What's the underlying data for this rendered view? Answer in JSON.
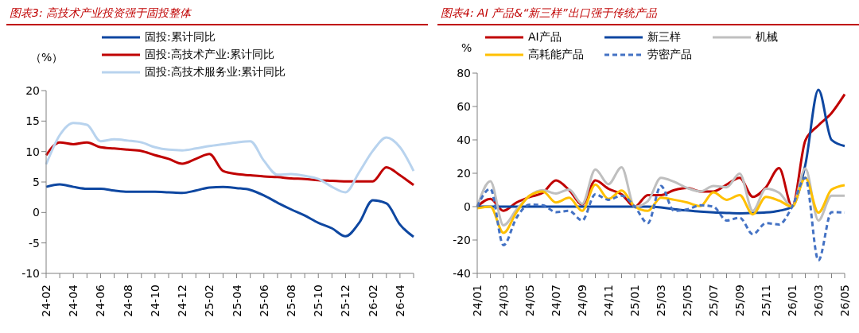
{
  "chart_data": [
    {
      "type": "line",
      "title": "图表3: 高技术产业投资强于固投整体",
      "ylabel": "（%）",
      "categories": [
        "24-02",
        null,
        "24-04",
        null,
        "24-06",
        null,
        "24-08",
        null,
        "24-10",
        null,
        "24-12",
        null,
        "25-02",
        null,
        "25-04",
        null,
        "25-06",
        null,
        "25-08",
        null,
        "25-10",
        null,
        "25-12",
        null,
        "26-02",
        null,
        "26-04",
        null
      ],
      "series": [
        {
          "name": "固投:累计同比",
          "color": "#0e47a1",
          "values": [
            4.2,
            4.6,
            4.2,
            3.9,
            3.9,
            3.6,
            3.4,
            3.4,
            3.4,
            3.3,
            3.2,
            3.6,
            4.1,
            4.2,
            4.0,
            3.7,
            2.8,
            1.6,
            0.5,
            -0.5,
            -1.7,
            -2.6,
            -3.9,
            -1.7,
            2.0,
            1.5,
            -2.0,
            -4.0
          ]
        },
        {
          "name": "固投:高技术产业:累计同比",
          "color": "#c00000",
          "values": [
            9.4,
            11.5,
            11.2,
            11.5,
            10.7,
            10.5,
            10.3,
            10.1,
            9.4,
            8.8,
            8.0,
            8.8,
            9.6,
            6.8,
            6.3,
            6.1,
            5.9,
            5.8,
            5.6,
            5.5,
            5.3,
            5.2,
            5.1,
            5.1,
            5.1,
            7.4,
            6.1,
            4.5
          ]
        },
        {
          "name": "固投:高技术服务业:累计同比",
          "color": "#b8d3ee",
          "values": [
            7.9,
            12.7,
            14.7,
            14.4,
            11.7,
            12.0,
            11.8,
            11.5,
            10.7,
            10.3,
            10.2,
            10.5,
            10.9,
            11.2,
            11.5,
            11.7,
            8.5,
            6.2,
            6.3,
            6.0,
            5.5,
            4.2,
            3.3,
            6.6,
            10.1,
            12.3,
            10.7,
            6.8
          ]
        }
      ],
      "ylim": [
        -10,
        20
      ],
      "yticks": [
        -10,
        -5,
        0,
        5,
        10,
        15,
        20
      ],
      "grid": false,
      "legend": "top",
      "marker": "none"
    },
    {
      "type": "line",
      "title": "图表4: AI 产品&“新三样”出口强于传统产品",
      "ylabel": "%",
      "categories": [
        "24/01",
        null,
        "24/03",
        null,
        "24/05",
        null,
        "24/07",
        null,
        "24/09",
        null,
        "24/11",
        null,
        "25/01",
        null,
        "25/03",
        null,
        "25/05",
        null,
        "25/07",
        null,
        "25/09",
        null,
        "25/11",
        null,
        "26/01",
        null,
        "26/03",
        null,
        "26/05"
      ],
      "series": [
        {
          "name": "AI产品",
          "color": "#c00000",
          "values": [
            0,
            4.6,
            -2.5,
            2.5,
            5.8,
            8.3,
            15.7,
            9.9,
            1.3,
            15.7,
            10.7,
            7.4,
            0,
            6.9,
            6.9,
            9.9,
            11.2,
            9.1,
            9.1,
            13.2,
            17.3,
            5.8,
            11.6,
            23.1,
            0,
            39.6,
            48.7,
            56.1,
            67.3
          ]
        },
        {
          "name": "新三样",
          "color": "#0e47a1",
          "values": [
            0,
            0,
            0,
            0,
            0,
            0,
            0,
            0,
            0,
            0,
            0,
            0,
            0,
            0,
            -0.5,
            -1.5,
            -2.3,
            -3.0,
            -3.5,
            -3.8,
            -4.0,
            -3.8,
            -3.5,
            -2.5,
            0,
            25,
            70,
            40,
            36.3
          ]
        },
        {
          "name": "机械",
          "color": "#bfbfbf",
          "values": [
            0,
            15.2,
            -11.2,
            -1.7,
            6.6,
            9.9,
            7.9,
            10.2,
            1.7,
            22.3,
            13.5,
            23.6,
            0,
            3.3,
            17.3,
            14.9,
            11.2,
            9.1,
            12.4,
            11.6,
            19.8,
            -2.5,
            10.7,
            8.3,
            0,
            22.8,
            -8.3,
            6.6,
            6.6
          ]
        },
        {
          "name": "高耗能产品",
          "color": "#ffc000",
          "values": [
            -1,
            0,
            -15.7,
            -3.3,
            6.6,
            9.1,
            2.5,
            5.3,
            -2.5,
            13.2,
            4.6,
            9.6,
            0,
            -2.5,
            5.3,
            4.1,
            2.5,
            0.3,
            8.6,
            4.1,
            6.9,
            -4.6,
            5.8,
            3.6,
            0,
            17.3,
            -3.6,
            10.2,
            12.9
          ]
        },
        {
          "name": "劳密产品",
          "color": "#4472c4",
          "line_style": "dashed",
          "values": [
            0,
            10.7,
            -23.1,
            -6.6,
            1.2,
            0.8,
            -3.3,
            -2.5,
            -8.3,
            7.4,
            4.1,
            6.6,
            0,
            -9.9,
            12.4,
            -2.5,
            -1.7,
            0.8,
            0,
            -8.3,
            -6.6,
            -16.5,
            -9.9,
            -10.7,
            0,
            17.3,
            -32.2,
            -3.3,
            -3.6
          ]
        }
      ],
      "ylim": [
        -40,
        80
      ],
      "yticks": [
        -40,
        -20,
        0,
        20,
        40,
        60,
        80
      ],
      "grid": false,
      "legend": "top",
      "marker": "none"
    }
  ]
}
